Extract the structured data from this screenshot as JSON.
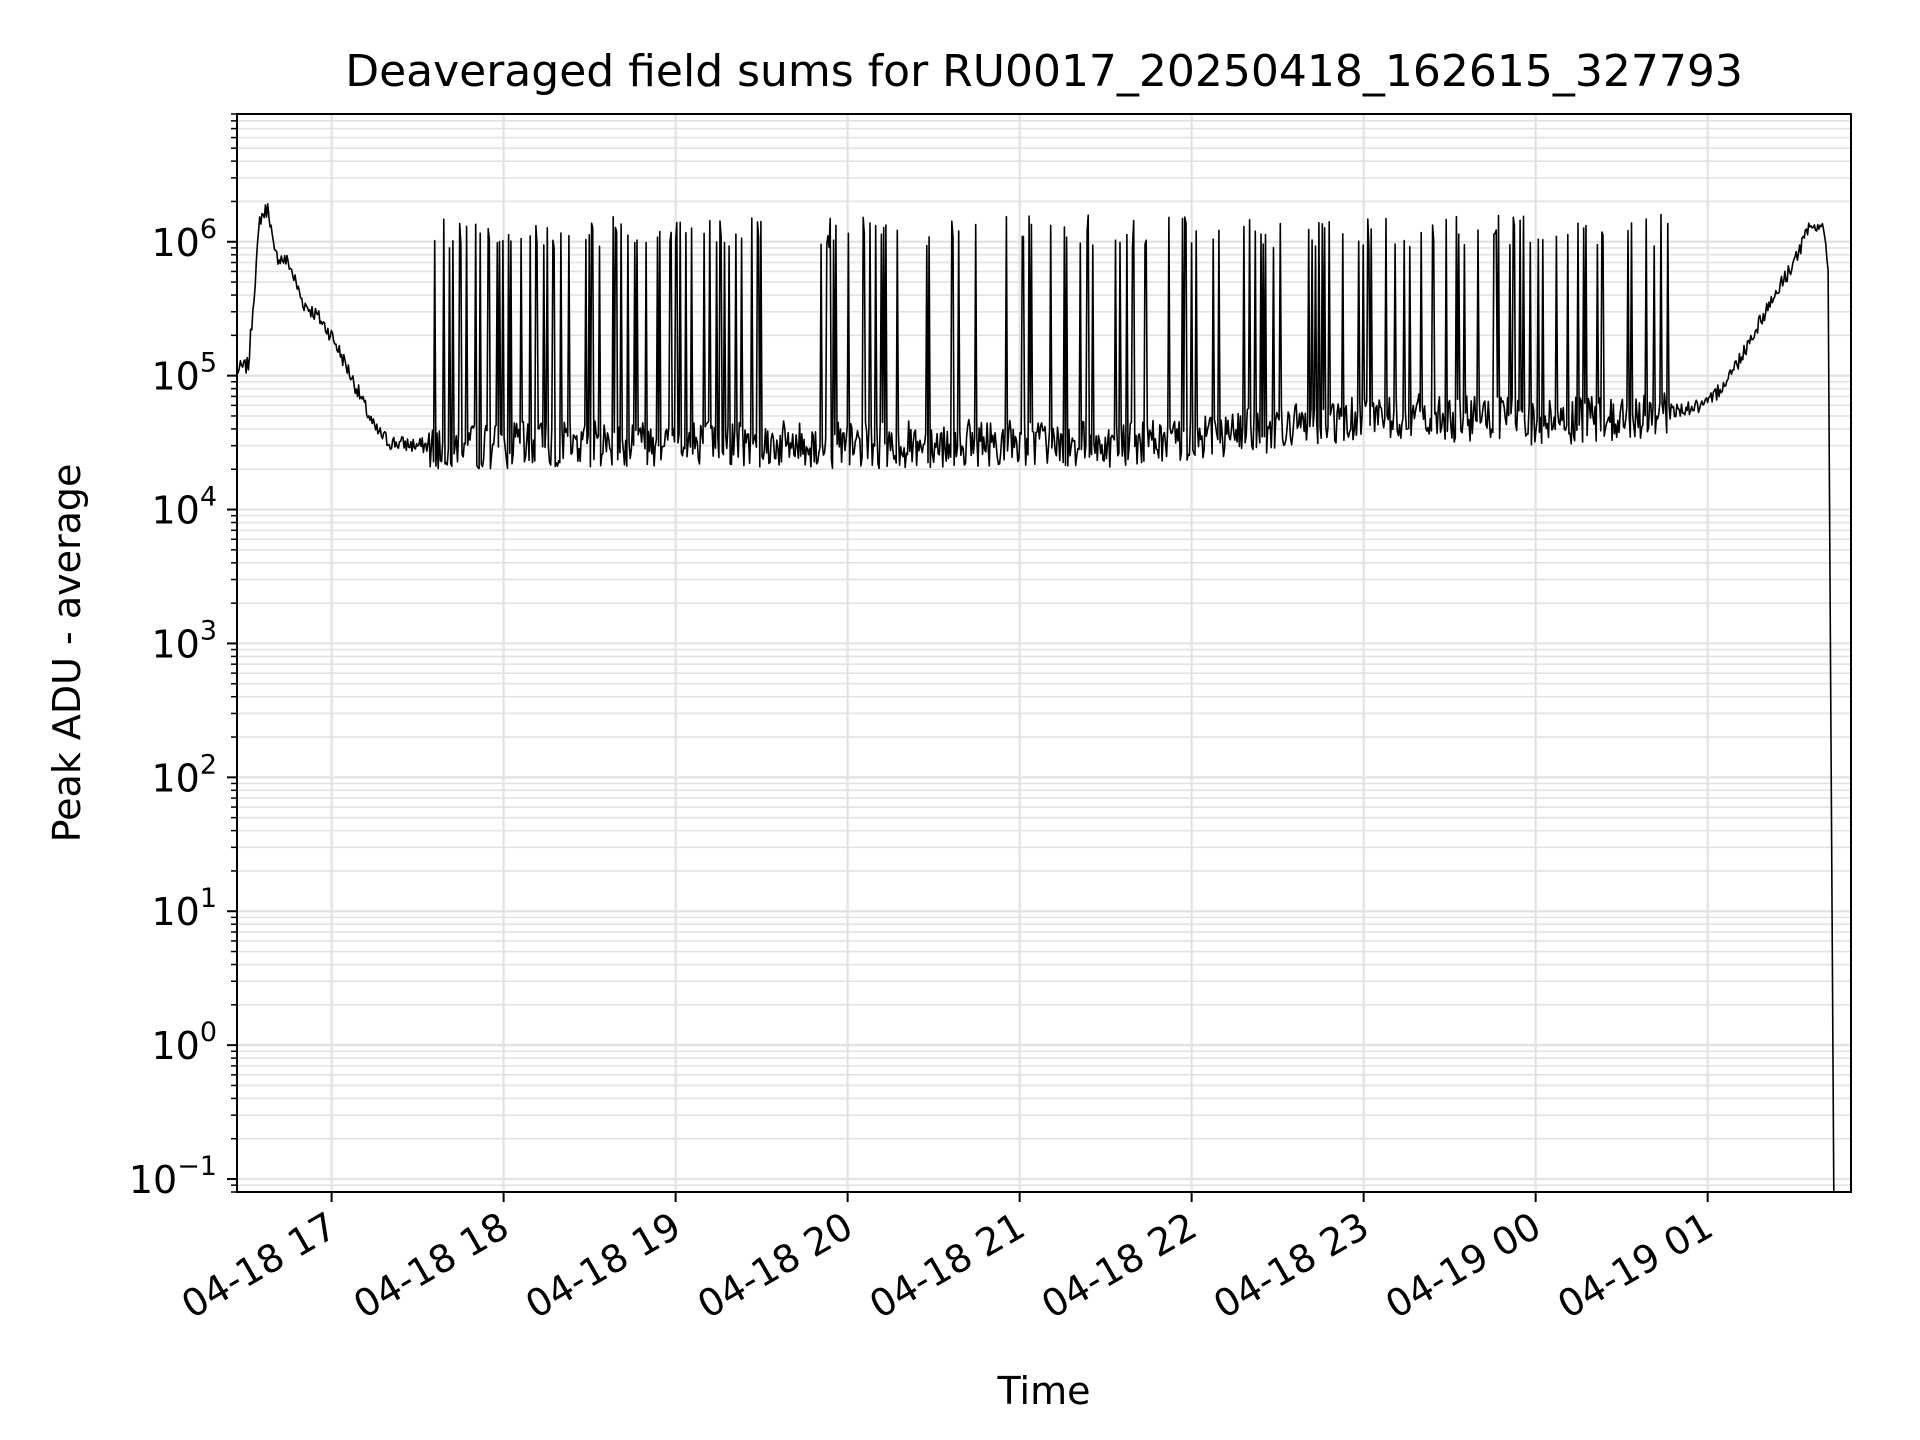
{
  "chart_data": {
    "type": "line",
    "title": "Deaveraged field sums for RU0017_20250418_162615_327793",
    "xlabel": "Time",
    "ylabel": "Peak ADU - average",
    "yscale": "log",
    "ylim": [
      0.08,
      9000000
    ],
    "xlim": [
      "2025-04-18 16:27",
      "2025-04-19 01:50"
    ],
    "grid": true,
    "line_color": "#000000",
    "x_ticks": [
      {
        "value": "2025-04-18 17:00",
        "label": "04-18 17"
      },
      {
        "value": "2025-04-18 18:00",
        "label": "04-18 18"
      },
      {
        "value": "2025-04-18 19:00",
        "label": "04-18 19"
      },
      {
        "value": "2025-04-18 20:00",
        "label": "04-18 20"
      },
      {
        "value": "2025-04-18 21:00",
        "label": "04-18 21"
      },
      {
        "value": "2025-04-18 22:00",
        "label": "04-18 22"
      },
      {
        "value": "2025-04-18 23:00",
        "label": "04-18 23"
      },
      {
        "value": "2025-04-19 00:00",
        "label": "04-19 00"
      },
      {
        "value": "2025-04-19 01:00",
        "label": "04-19 01"
      }
    ],
    "y_ticks": [
      {
        "value": 0.1,
        "base": "10",
        "exp": "−1"
      },
      {
        "value": 1,
        "base": "10",
        "exp": "0"
      },
      {
        "value": 10,
        "base": "10",
        "exp": "1"
      },
      {
        "value": 100,
        "base": "10",
        "exp": "2"
      },
      {
        "value": 1000,
        "base": "10",
        "exp": "3"
      },
      {
        "value": 10000,
        "base": "10",
        "exp": "4"
      },
      {
        "value": 100000,
        "base": "10",
        "exp": "5"
      },
      {
        "value": 1000000,
        "base": "10",
        "exp": "6"
      }
    ],
    "series": [
      {
        "points": [
          [
            "2025-04-18 16:27",
            110000
          ],
          [
            "2025-04-18 16:31",
            120000
          ],
          [
            "2025-04-18 16:35",
            1500000
          ],
          [
            "2025-04-18 16:38",
            1800000
          ],
          [
            "2025-04-18 16:40",
            800000
          ],
          [
            "2025-04-18 16:45",
            700000
          ],
          [
            "2025-04-18 16:50",
            350000
          ],
          [
            "2025-04-18 16:55",
            280000
          ],
          [
            "2025-04-18 17:00",
            200000
          ],
          [
            "2025-04-18 17:05",
            120000
          ],
          [
            "2025-04-18 17:10",
            70000
          ],
          [
            "2025-04-18 17:15",
            40000
          ],
          [
            "2025-04-18 17:20",
            32000
          ],
          [
            "2025-04-18 17:30",
            30000
          ],
          [
            "2025-04-18 18:00",
            30000
          ],
          [
            "2025-04-18 19:00",
            32000
          ],
          [
            "2025-04-18 20:00",
            30000
          ],
          [
            "2025-04-18 21:00",
            32000
          ],
          [
            "2025-04-18 21:40",
            30000
          ],
          [
            "2025-04-18 22:00",
            35000
          ],
          [
            "2025-04-18 22:30",
            40000
          ],
          [
            "2025-04-18 23:00",
            50000
          ],
          [
            "2025-04-18 23:30",
            48000
          ],
          [
            "2025-04-19 00:00",
            45000
          ],
          [
            "2025-04-19 00:30",
            48000
          ],
          [
            "2025-04-19 01:00",
            60000
          ],
          [
            "2025-04-19 01:10",
            120000
          ],
          [
            "2025-04-19 01:20",
            300000
          ],
          [
            "2025-04-19 01:30",
            700000
          ],
          [
            "2025-04-19 01:35",
            1200000
          ],
          [
            "2025-04-19 01:40",
            1400000
          ],
          [
            "2025-04-19 01:42",
            600000
          ],
          [
            "2025-04-19 01:44",
            0.08
          ]
        ],
        "spike_peak_typical": 1200000,
        "baseline_noise_floor": 20000
      }
    ]
  }
}
